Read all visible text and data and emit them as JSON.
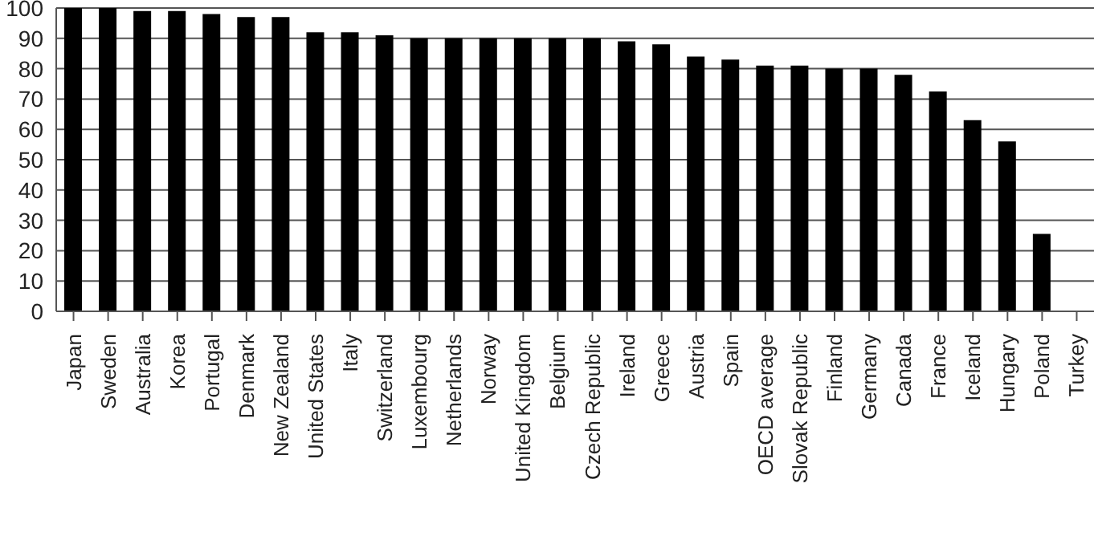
{
  "chart_data": {
    "type": "bar",
    "categories": [
      "Japan",
      "Sweden",
      "Australia",
      "Korea",
      "Portugal",
      "Denmark",
      "New Zealand",
      "United States",
      "Italy",
      "Switzerland",
      "Luxembourg",
      "Netherlands",
      "Norway",
      "United Kingdom",
      "Belgium",
      "Czech Republic",
      "Ireland",
      "Greece",
      "Austria",
      "Spain",
      "OECD average",
      "Slovak Republic",
      "Finland",
      "Germany",
      "Canada",
      "France",
      "Iceland",
      "Hungary",
      "Poland",
      "Turkey"
    ],
    "values": [
      100,
      100,
      99,
      99,
      98,
      97,
      97,
      92,
      92,
      91,
      90,
      90,
      90,
      90,
      90,
      90,
      89,
      88,
      84,
      83,
      81,
      81,
      80,
      80,
      78,
      72.5,
      63,
      56,
      25.5,
      null
    ],
    "color": "#000000",
    "ylim": [
      0,
      100
    ],
    "yticks": [
      0,
      10,
      20,
      30,
      40,
      50,
      60,
      70,
      80,
      90,
      100
    ],
    "grid": "y"
  }
}
